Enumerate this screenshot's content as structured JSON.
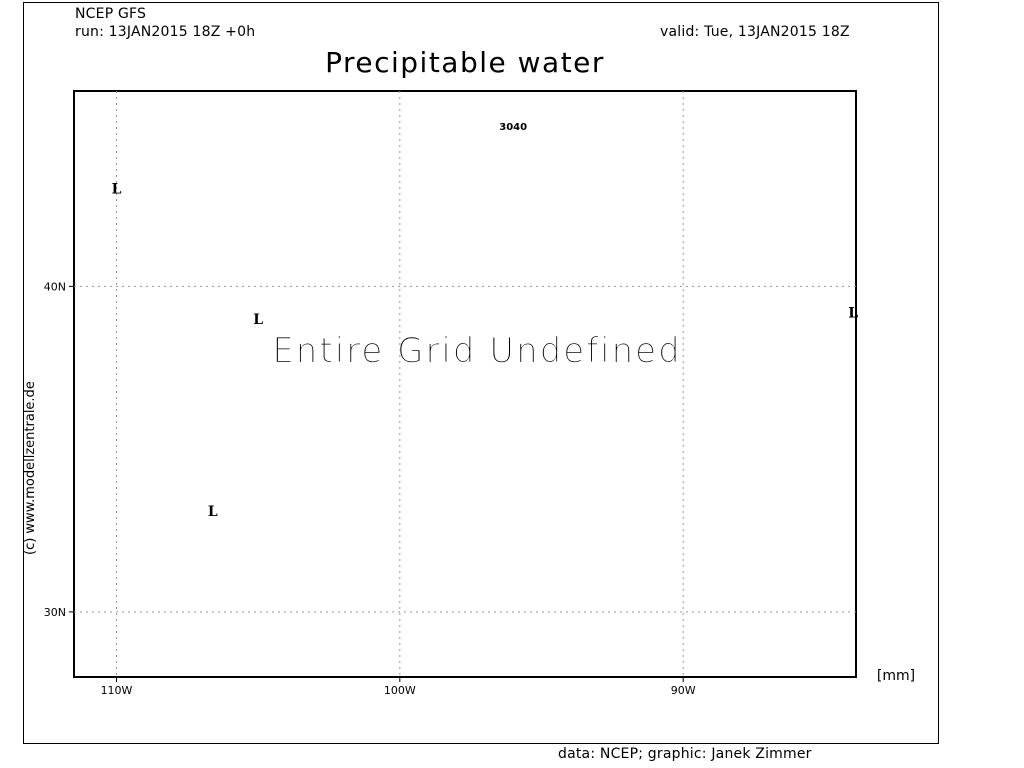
{
  "header": {
    "model": "NCEP GFS",
    "run": "run: 13JAN2015 18Z +0h",
    "valid": "valid: Tue, 13JAN2015 18Z",
    "title": "Precipitable water"
  },
  "map": {
    "lon_ticks": [
      "110W",
      "100W",
      "90W"
    ],
    "lat_ticks": [
      "40N",
      "30N"
    ],
    "unit_label": "[mm]",
    "undefined_message": "Entire Grid Undefined",
    "contour_label": "3040",
    "low_markers": [
      {
        "label": "L",
        "lon": -110.0,
        "lat": 43.0
      },
      {
        "label": "L",
        "lon": -105.0,
        "lat": 39.0
      },
      {
        "label": "L",
        "lon": -106.6,
        "lat": 33.1
      },
      {
        "label": "L",
        "lon": -84.0,
        "lat": 39.2
      }
    ],
    "contour_label_position": {
      "lon": -96.0,
      "lat": 44.8
    },
    "extent": {
      "lon_min": -111.5,
      "lon_max": -83.9,
      "lat_min": 28.0,
      "lat_max": 46.0
    },
    "grid_lons": [
      -110,
      -100,
      -90
    ],
    "grid_lats": [
      40,
      30
    ]
  },
  "footer": {
    "credit_vertical": "(c)  www.modellzentrale.de",
    "data_source": "data: NCEP; graphic: Janek Zimmer"
  }
}
